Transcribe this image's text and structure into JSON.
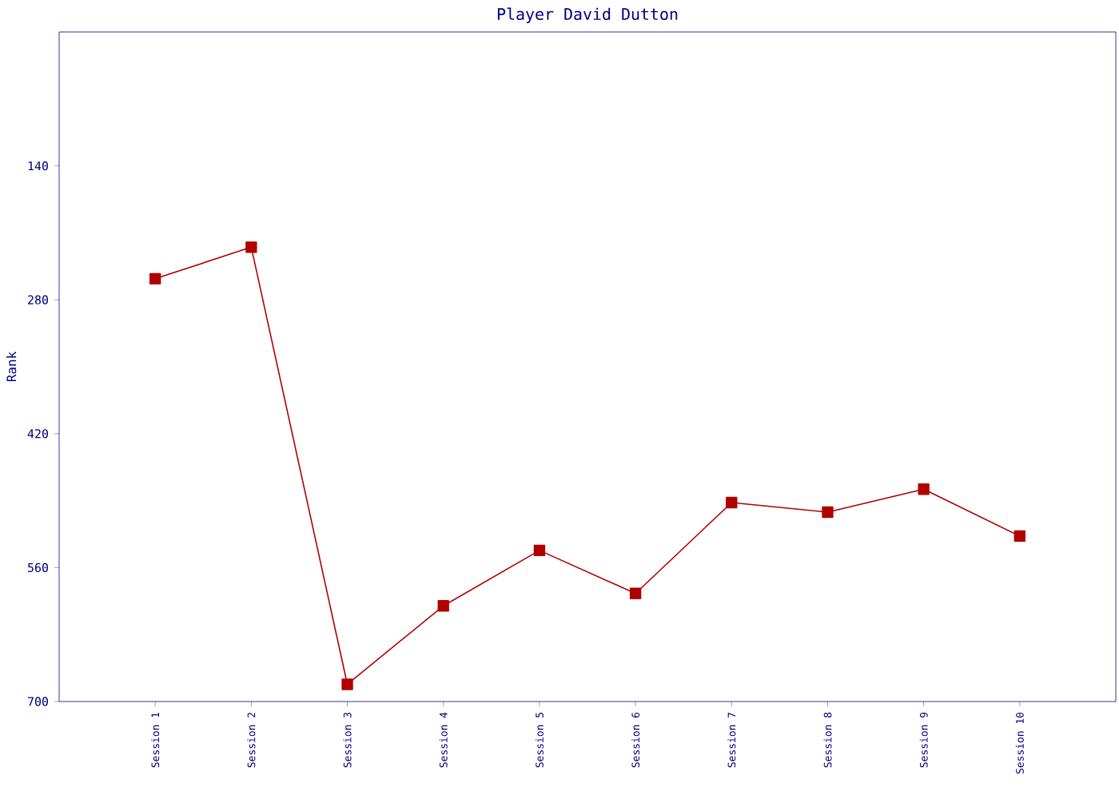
{
  "chart_data": {
    "type": "line",
    "title": "Player David Dutton",
    "ylabel": "Rank",
    "categories": [
      "Session 1",
      "Session 2",
      "Session 3",
      "Session 4",
      "Session 5",
      "Session 6",
      "Session 7",
      "Session 8",
      "Session 9",
      "Session 10"
    ],
    "series": [
      {
        "color": "#b00000",
        "values": [
          258,
          225,
          682,
          600,
          542,
          587,
          492,
          502,
          478,
          527
        ]
      }
    ],
    "ylim": [
      700,
      0
    ],
    "yticks": [
      140,
      280,
      420,
      560,
      700
    ],
    "marker": "square",
    "line_style": "solid",
    "grid": false,
    "legend": false
  }
}
